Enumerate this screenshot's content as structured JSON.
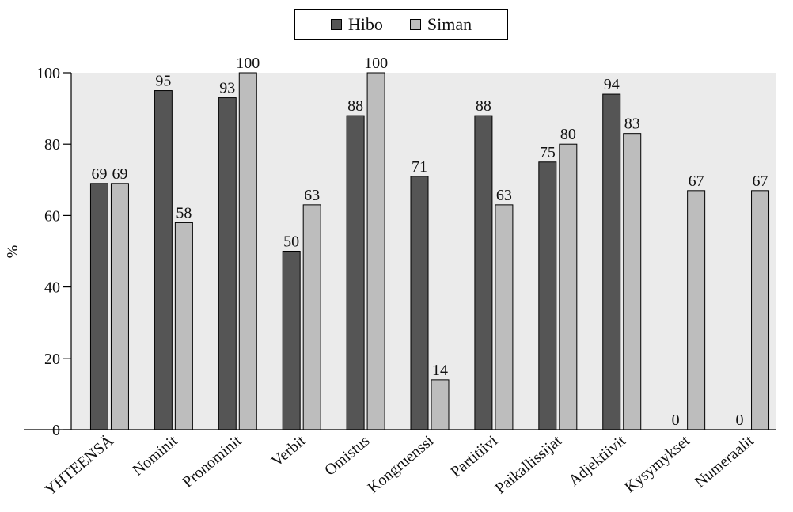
{
  "chart_data": {
    "type": "bar",
    "title": "",
    "xlabel": "",
    "ylabel": "%",
    "ylim": [
      0,
      100
    ],
    "yticks": [
      0,
      20,
      40,
      60,
      80,
      100
    ],
    "grid": false,
    "legend_position": "top-center",
    "categories": [
      "YHTEENSÄ",
      "Nominit",
      "Pronominit",
      "Verbit",
      "Omistus",
      "Kongruenssi",
      "Partitiivi",
      "Paikallissijat",
      "Adjektiivit",
      "Kysymykset",
      "Numeraalit"
    ],
    "series": [
      {
        "name": "Hibo",
        "color": "#555555",
        "values": [
          69,
          95,
          93,
          50,
          88,
          71,
          88,
          75,
          94,
          0,
          0
        ]
      },
      {
        "name": "Siman",
        "color": "#bdbdbd",
        "values": [
          69,
          58,
          100,
          63,
          100,
          14,
          63,
          80,
          83,
          67,
          67
        ]
      }
    ],
    "plot_background": "#ebebeb"
  }
}
